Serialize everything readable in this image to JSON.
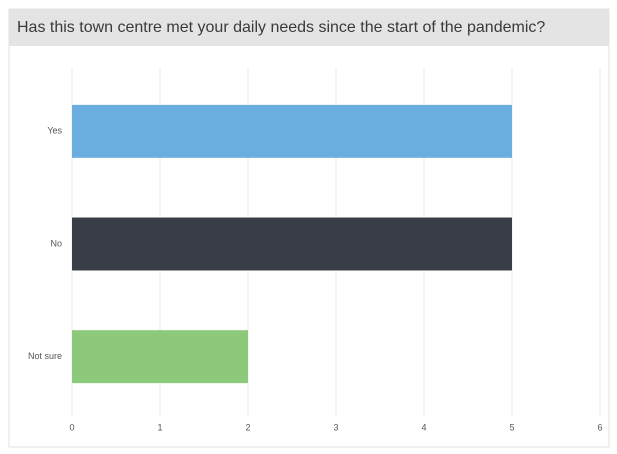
{
  "chart_data": {
    "type": "bar",
    "orientation": "horizontal",
    "title": "Has this town centre met your daily needs since the start of the pandemic?",
    "categories": [
      "Yes",
      "No",
      "Not sure"
    ],
    "values": [
      5,
      5,
      2
    ],
    "colors": [
      "#6aaddf",
      "#393d47",
      "#8dc97a"
    ],
    "xlim": [
      0,
      6
    ],
    "xticks": [
      0,
      1,
      2,
      3,
      4,
      5,
      6
    ],
    "grid": true
  }
}
